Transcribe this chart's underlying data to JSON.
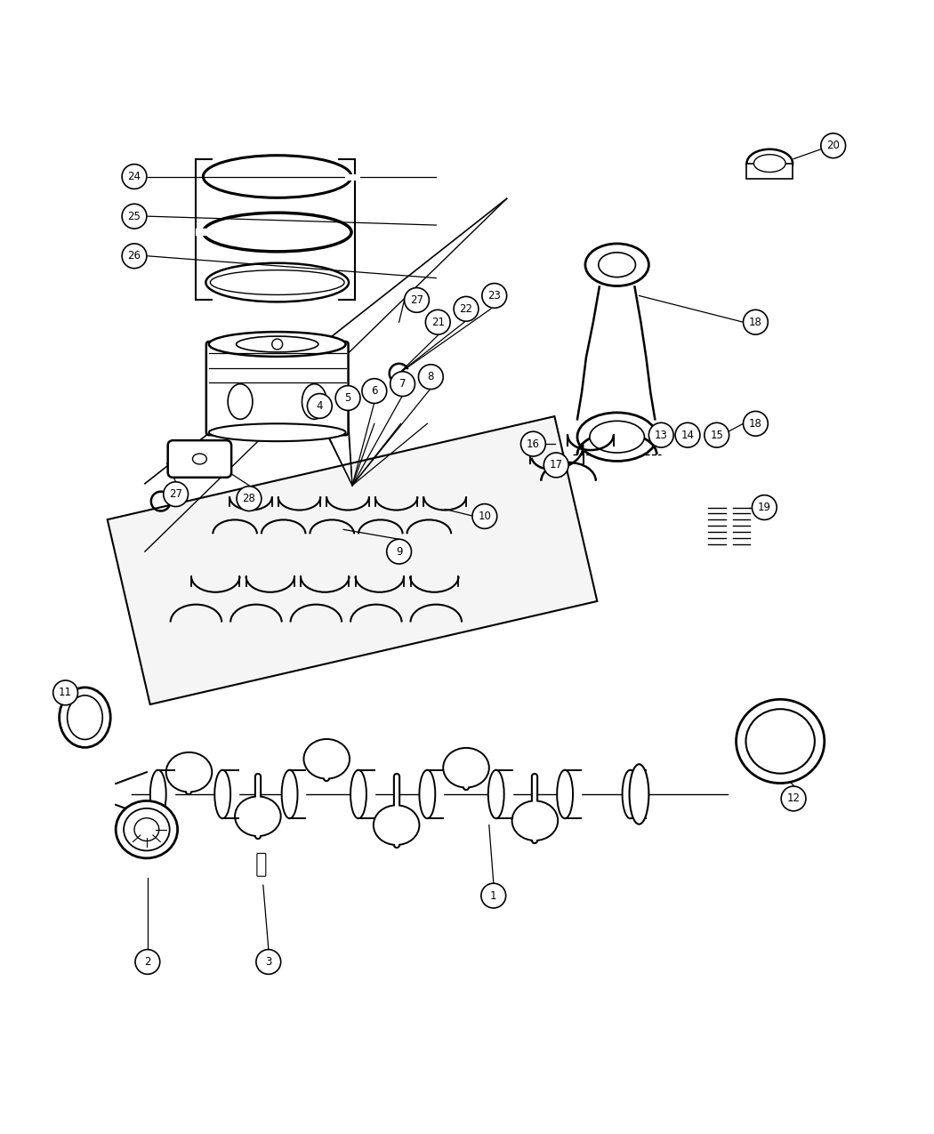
{
  "title": "",
  "background_color": "#ffffff",
  "line_color": "#000000",
  "fig_width": 10.5,
  "fig_height": 12.75,
  "dpi": 100
}
